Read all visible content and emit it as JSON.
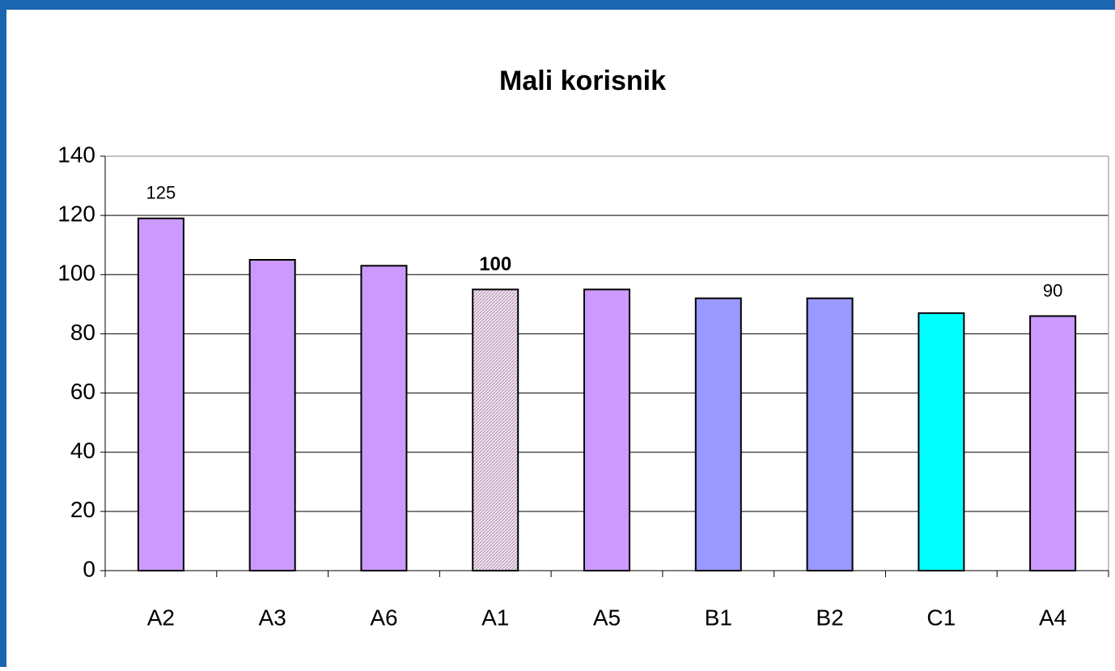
{
  "chart_data": {
    "type": "bar",
    "title": "Mali korisnik",
    "categories": [
      "A2",
      "A3",
      "A6",
      "A1",
      "A5",
      "B1",
      "B2",
      "C1",
      "A4"
    ],
    "values": [
      119,
      105,
      103,
      95,
      95,
      92,
      92,
      87,
      86
    ],
    "colors": [
      "#cc99ff",
      "#cc99ff",
      "#cc99ff",
      "#e8cfe8",
      "#cc99ff",
      "#9999ff",
      "#9999ff",
      "#00ffff",
      "#cc99ff"
    ],
    "annotations": [
      {
        "category": "A2",
        "text": "125",
        "bold": false
      },
      {
        "category": "A1",
        "text": "100",
        "bold": true
      },
      {
        "category": "A4",
        "text": "90",
        "bold": false
      }
    ],
    "ylim": [
      0,
      140
    ],
    "yticks": [
      0,
      20,
      40,
      60,
      80,
      100,
      120,
      140
    ],
    "grid": true
  }
}
